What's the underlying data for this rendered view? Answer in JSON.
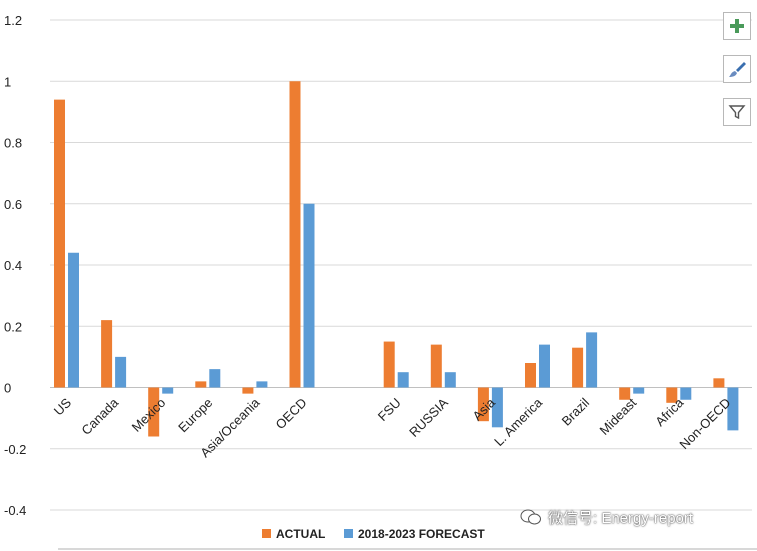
{
  "chart_data": {
    "type": "bar",
    "title": "",
    "xlabel": "",
    "ylabel": "",
    "ylim": [
      -0.4,
      1.2
    ],
    "yticks": [
      "-0.4",
      "-0.2",
      "0",
      "0.2",
      "0.4",
      "0.6",
      "0.8",
      "1",
      "1.2"
    ],
    "grid": true,
    "legend": "bottom",
    "categories": [
      "US",
      "Canada",
      "Mexico",
      "Europe",
      "Asia/Oceania",
      "OECD",
      "",
      "FSU",
      "RUSSIA",
      "Asia",
      "L. America",
      "Brazil",
      "Mideast",
      "Africa",
      "Non-OECD"
    ],
    "series": [
      {
        "name": "ACTUAL",
        "color": "#ED7D31",
        "values": [
          0.94,
          0.22,
          -0.16,
          0.02,
          -0.02,
          1.0,
          null,
          0.15,
          0.14,
          -0.11,
          0.08,
          0.13,
          -0.04,
          -0.05,
          0.03
        ]
      },
      {
        "name": "2018-2023 FORECAST",
        "color": "#5B9BD5",
        "values": [
          0.44,
          0.1,
          -0.02,
          0.06,
          0.02,
          0.6,
          null,
          0.05,
          0.05,
          -0.13,
          0.14,
          0.18,
          -0.02,
          -0.04,
          -0.14
        ]
      }
    ]
  },
  "toolbar": {
    "buttons": [
      {
        "name": "chart-elements-button",
        "icon": "plus-icon"
      },
      {
        "name": "chart-styles-button",
        "icon": "paintbrush-icon"
      },
      {
        "name": "chart-filters-button",
        "icon": "funnel-icon"
      }
    ]
  },
  "watermark": {
    "text": "微信号: Energy-report"
  }
}
